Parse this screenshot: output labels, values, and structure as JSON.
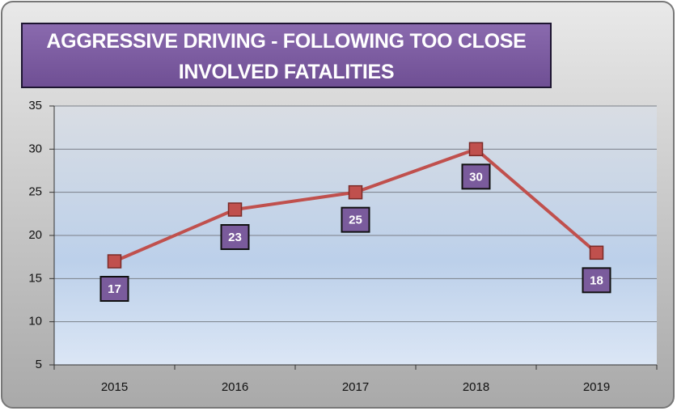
{
  "chart_data": {
    "type": "line",
    "title": "AGGRESSIVE DRIVING - FOLLOWING TOO CLOSE INVOLVED FATALITIES",
    "categories": [
      "2015",
      "2016",
      "2017",
      "2018",
      "2019"
    ],
    "values": [
      17,
      23,
      25,
      30,
      18
    ],
    "color": "#c0504d",
    "ylim": [
      5,
      35
    ],
    "yticks": [
      5,
      10,
      15,
      20,
      25,
      30,
      35
    ],
    "grid": true
  }
}
